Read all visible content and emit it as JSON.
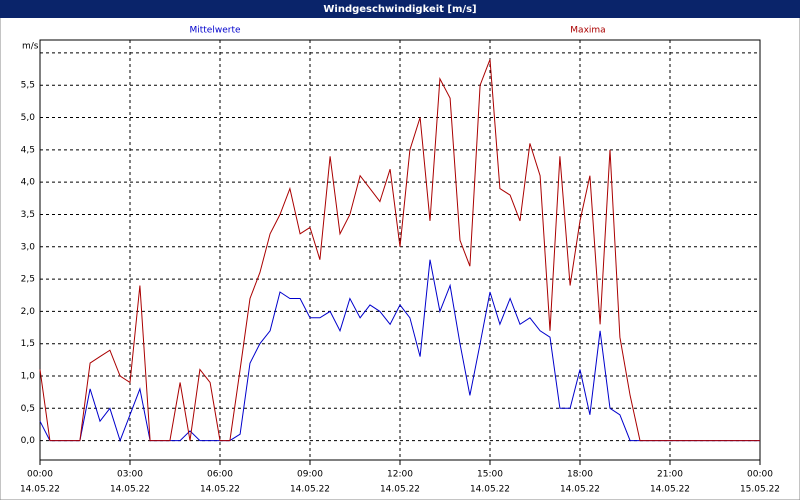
{
  "chart_data": {
    "type": "line",
    "title": "Windgeschwindigkeit [m/s]",
    "x": [
      0,
      0.33,
      0.67,
      1,
      1.33,
      1.67,
      2,
      2.33,
      2.67,
      3,
      3.33,
      3.67,
      4,
      4.33,
      4.67,
      5,
      5.33,
      5.67,
      6,
      6.33,
      6.67,
      7,
      7.33,
      7.67,
      8,
      8.33,
      8.67,
      9,
      9.33,
      9.67,
      10,
      10.33,
      10.67,
      11,
      11.33,
      11.67,
      12,
      12.33,
      12.67,
      13,
      13.33,
      13.67,
      14,
      14.33,
      14.67,
      15,
      15.33,
      15.67,
      16,
      16.33,
      16.67,
      17,
      17.33,
      17.67,
      18,
      18.33,
      18.67,
      19,
      19.33,
      19.67,
      20,
      20.33,
      20.67,
      21,
      21.33,
      21.67,
      22,
      22.33,
      22.67,
      23,
      23.33,
      23.67,
      24
    ],
    "series": [
      {
        "name": "Mittelwerte",
        "color": "#0000cc",
        "values": [
          0.3,
          0,
          0,
          0,
          0,
          0.8,
          0.3,
          0.5,
          0,
          0.4,
          0.8,
          0,
          0,
          0,
          0,
          0.15,
          0,
          0,
          0,
          0,
          0.1,
          1.2,
          1.5,
          1.7,
          2.3,
          2.2,
          2.2,
          1.9,
          1.9,
          2.0,
          1.7,
          2.2,
          1.9,
          2.1,
          2.0,
          1.8,
          2.1,
          1.9,
          1.3,
          2.8,
          2.0,
          2.4,
          1.5,
          0.7,
          1.5,
          2.3,
          1.8,
          2.2,
          1.8,
          1.9,
          1.7,
          1.6,
          0.5,
          0.5,
          1.1,
          0.4,
          1.7,
          0.5,
          0.4,
          0,
          0,
          0,
          0,
          0,
          0,
          0,
          0,
          0,
          0,
          0,
          0,
          0,
          0
        ]
      },
      {
        "name": "Maxima",
        "color": "#aa0000",
        "values": [
          1.1,
          0,
          0,
          0,
          0,
          1.2,
          1.3,
          1.4,
          1.0,
          0.9,
          2.4,
          0,
          0,
          0,
          0.9,
          0,
          1.1,
          0.9,
          0,
          0,
          1.1,
          2.2,
          2.6,
          3.2,
          3.5,
          3.9,
          3.2,
          3.3,
          2.8,
          4.4,
          3.2,
          3.5,
          4.1,
          3.9,
          3.7,
          4.2,
          3.0,
          4.5,
          5.0,
          3.4,
          5.6,
          5.3,
          3.1,
          2.7,
          5.5,
          5.9,
          3.9,
          3.8,
          3.4,
          4.6,
          4.1,
          1.7,
          4.4,
          2.4,
          3.4,
          4.1,
          1.8,
          4.5,
          1.6,
          0.7,
          0,
          0,
          0,
          0,
          0,
          0,
          0,
          0,
          0,
          0,
          0,
          0,
          0
        ]
      }
    ],
    "xlim": [
      0,
      24
    ],
    "xticks": [
      {
        "value": 0,
        "label": "00:00"
      },
      {
        "value": 3,
        "label": "03:00"
      },
      {
        "value": 6,
        "label": "06:00"
      },
      {
        "value": 9,
        "label": "09:00"
      },
      {
        "value": 12,
        "label": "12:00"
      },
      {
        "value": 15,
        "label": "15:00"
      },
      {
        "value": 18,
        "label": "18:00"
      },
      {
        "value": 21,
        "label": "21:00"
      },
      {
        "value": 24,
        "label": "00:00"
      }
    ],
    "xtick_dates": [
      "14.05.22",
      "14.05.22",
      "14.05.22",
      "14.05.22",
      "14.05.22",
      "14.05.22",
      "14.05.22",
      "14.05.22",
      "15.05.22"
    ],
    "ylim": [
      -0.3,
      6.2
    ],
    "yticks": [
      {
        "value": 0,
        "label": "0,0"
      },
      {
        "value": 0.5,
        "label": "0,5"
      },
      {
        "value": 1,
        "label": "1,0"
      },
      {
        "value": 1.5,
        "label": "1,5"
      },
      {
        "value": 2,
        "label": "2,0"
      },
      {
        "value": 2.5,
        "label": "2,5"
      },
      {
        "value": 3,
        "label": "3,0"
      },
      {
        "value": 3.5,
        "label": "3,5"
      },
      {
        "value": 4,
        "label": "4,0"
      },
      {
        "value": 4.5,
        "label": "4,5"
      },
      {
        "value": 5,
        "label": "5,0"
      },
      {
        "value": 5.5,
        "label": "5,5"
      },
      {
        "value": 6,
        "label": "m/s"
      }
    ],
    "grid": true
  }
}
